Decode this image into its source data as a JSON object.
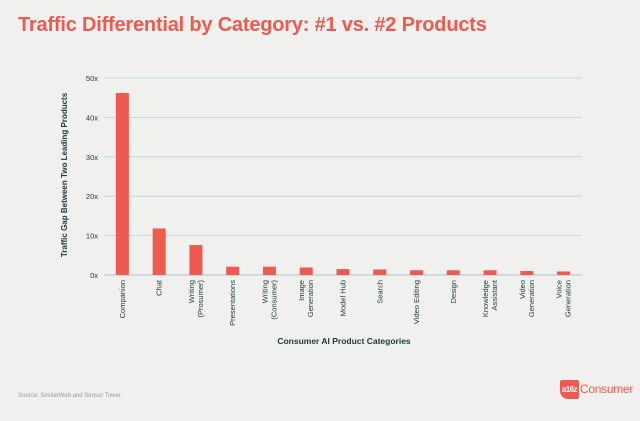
{
  "title": "Traffic Differential by Category: #1 vs. #2 Products",
  "source": "Source: SimilarWeb and Sensor Tower",
  "logo": {
    "badge": "a16z",
    "text": "Consumer"
  },
  "colors": {
    "accent": "#ee5a4f",
    "bar": "#ee5a4f",
    "grid": "#bfcfd2",
    "axis_text": "#1d3a3a"
  },
  "chart_data": {
    "type": "bar",
    "categories": [
      "Companion",
      "Chat",
      "Writing (Prosumer)",
      "Presentations",
      "Writing (Consumer)",
      "Image Generation",
      "Model Hub",
      "Search",
      "Video Editing",
      "Design",
      "Knowledge Assistant",
      "Video Generation",
      "Voice Generation"
    ],
    "category_lines": [
      [
        "Companion"
      ],
      [
        "Chat"
      ],
      [
        "Writing",
        "(Prosumer)"
      ],
      [
        "Presentations"
      ],
      [
        "Writing",
        "(Consumer)"
      ],
      [
        "Image",
        "Generation"
      ],
      [
        "Model Hub"
      ],
      [
        "Search"
      ],
      [
        "Video Editing"
      ],
      [
        "Design"
      ],
      [
        "Knowledge",
        "Assistant"
      ],
      [
        "Video",
        "Generation"
      ],
      [
        "Voice",
        "Generation"
      ]
    ],
    "values": [
      46.2,
      11.8,
      7.6,
      2.1,
      2.1,
      1.9,
      1.5,
      1.4,
      1.2,
      1.2,
      1.2,
      1.0,
      0.9
    ],
    "title": "Traffic Differential by Category: #1 vs. #2 Products",
    "xlabel": "Consumer AI Product Categories",
    "ylabel": "Traffic Gap Between Two Leading Products",
    "ylim": [
      0,
      50
    ],
    "yticks": [
      0,
      10,
      20,
      30,
      40,
      50
    ],
    "ytick_labels": [
      "0x",
      "10x",
      "20x",
      "30x",
      "40x",
      "50x"
    ],
    "grid": true,
    "legend": "none"
  }
}
